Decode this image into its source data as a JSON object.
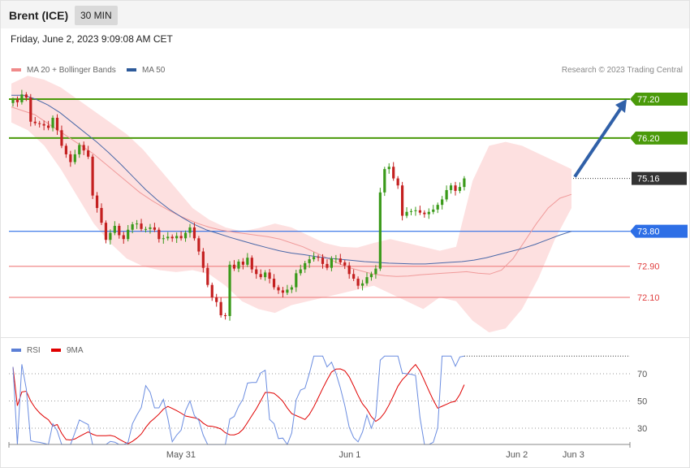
{
  "header": {
    "symbol": "Brent (ICE)",
    "timeframe": "30 MIN"
  },
  "datetime": "Friday, June 2, 2023 9:09:08 AM CET",
  "legend": {
    "main": [
      {
        "label": "MA 20 + Bollinger Bands",
        "color": "#f08a8a"
      },
      {
        "label": "MA 50",
        "color": "#2d5a9a"
      }
    ],
    "rsi": [
      {
        "label": "RSI",
        "color": "#5b7fd6"
      },
      {
        "label": "9MA",
        "color": "#e00000"
      }
    ]
  },
  "credit": "Research © 2023 Trading Central",
  "chart_data": {
    "type": "candlestick",
    "price_range": [
      71.3,
      78.3
    ],
    "levels": [
      {
        "value": 77.2,
        "label": "77.20",
        "kind": "resistance",
        "color": "#4a9a0a"
      },
      {
        "value": 76.2,
        "label": "76.20",
        "kind": "resistance",
        "color": "#4a9a0a"
      },
      {
        "value": 75.16,
        "label": "75.16",
        "kind": "last",
        "color": "#333333"
      },
      {
        "value": 73.8,
        "label": "73.80",
        "kind": "pivot",
        "color": "#2e6fe6"
      },
      {
        "value": 72.9,
        "label": "72.90",
        "kind": "support",
        "color": "#f08a8a"
      },
      {
        "value": 72.1,
        "label": "72.10",
        "kind": "support",
        "color": "#f08a8a"
      }
    ],
    "closes": [
      77.18,
      77.12,
      77.32,
      77.24,
      76.62,
      76.58,
      76.56,
      76.52,
      76.46,
      76.72,
      76.4,
      76.0,
      75.78,
      75.58,
      75.78,
      76.02,
      75.88,
      75.72,
      74.72,
      74.4,
      74.02,
      73.58,
      73.76,
      73.94,
      73.7,
      73.6,
      73.84,
      73.98,
      74.0,
      73.86,
      73.86,
      73.9,
      73.84,
      73.6,
      73.62,
      73.66,
      73.62,
      73.68,
      73.62,
      73.76,
      73.9,
      73.62,
      73.28,
      72.86,
      72.42,
      72.1,
      71.98,
      71.64,
      71.62,
      72.94,
      72.84,
      73.02,
      72.94,
      73.12,
      72.82,
      72.7,
      72.62,
      72.74,
      72.58,
      72.36,
      72.28,
      72.22,
      72.3,
      72.36,
      72.72,
      72.82,
      72.98,
      73.08,
      73.14,
      73.12,
      72.96,
      72.86,
      73.1,
      73.1,
      73.0,
      72.92,
      72.7,
      72.58,
      72.4,
      72.46,
      72.62,
      72.7,
      72.84,
      74.8,
      75.4,
      75.46,
      75.16,
      74.98,
      74.2,
      74.3,
      74.32,
      74.34,
      74.28,
      74.24,
      74.3,
      74.36,
      74.48,
      74.62,
      74.86,
      74.98,
      74.84,
      74.94,
      75.16
    ],
    "ma20": [
      77.0,
      76.9,
      76.8,
      76.6,
      76.4,
      76.2,
      76.0,
      75.8,
      75.55,
      75.3,
      75.05,
      74.8,
      74.6,
      74.42,
      74.26,
      74.12,
      74.0,
      73.9,
      73.83,
      73.78,
      73.74,
      73.7,
      73.66,
      73.6,
      73.5,
      73.4,
      73.26,
      73.12,
      72.98,
      72.86,
      72.78,
      72.7,
      72.66,
      72.64,
      72.65,
      72.68,
      72.7,
      72.72,
      72.74,
      72.76,
      72.72,
      72.7,
      72.8,
      73.1,
      73.55,
      74.0,
      74.4,
      74.65,
      74.75
    ],
    "ma50": [
      77.3,
      77.3,
      77.2,
      77.05,
      76.85,
      76.6,
      76.35,
      76.1,
      75.82,
      75.52,
      75.2,
      74.88,
      74.6,
      74.36,
      74.16,
      73.98,
      73.84,
      73.74,
      73.64,
      73.55,
      73.46,
      73.38,
      73.3,
      73.24,
      73.2,
      73.15,
      73.11,
      73.08,
      73.05,
      73.02,
      73.0,
      72.98,
      72.97,
      72.96,
      72.96,
      72.98,
      73.0,
      73.02,
      73.06,
      73.12,
      73.2,
      73.28,
      73.36,
      73.46,
      73.58,
      73.7,
      73.8
    ],
    "bollinger_upper": [
      77.6,
      77.8,
      77.7,
      77.5,
      77.2,
      76.9,
      76.6,
      76.3,
      75.9,
      75.4,
      74.9,
      74.4,
      74.1,
      73.9,
      73.8,
      73.88,
      74.0,
      73.9,
      73.7,
      73.5,
      73.4,
      73.38,
      73.5,
      73.6,
      73.5,
      73.4,
      73.3,
      73.4,
      75.1,
      76.0,
      76.1,
      76.0,
      75.8,
      75.6,
      75.4
    ],
    "bollinger_lower": [
      76.6,
      76.4,
      76.0,
      75.4,
      74.7,
      74.0,
      73.5,
      73.1,
      72.9,
      72.8,
      72.75,
      72.8,
      72.7,
      72.4,
      72.0,
      71.8,
      71.7,
      71.9,
      72.0,
      72.1,
      72.2,
      72.3,
      72.4,
      72.2,
      72.0,
      71.8,
      72.1,
      72.0,
      71.5,
      71.2,
      71.3,
      71.8,
      72.6,
      73.6,
      74.4
    ],
    "rsi_range": [
      18,
      83
    ],
    "rsi_ticks": [
      70,
      50,
      30
    ],
    "x_ticks": [
      {
        "label": "May 31",
        "pos": 0.277
      },
      {
        "label": "Jun 1",
        "pos": 0.549
      },
      {
        "label": "Jun 2",
        "pos": 0.818
      },
      {
        "label": "Jun 3",
        "pos": 0.909
      }
    ]
  }
}
